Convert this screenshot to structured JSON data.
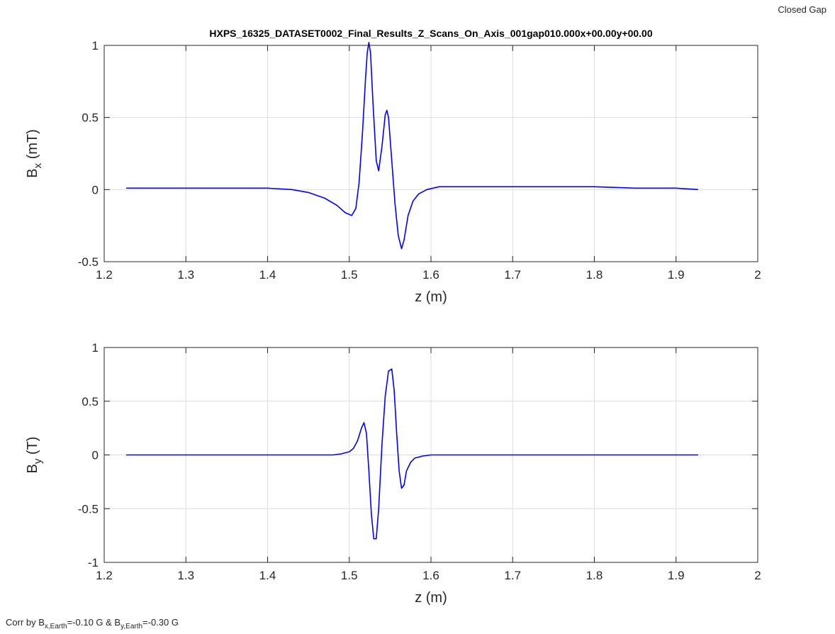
{
  "corner_label": "Closed Gap",
  "footnote": {
    "prefix": "Corr by B",
    "sub1": "x,Earth",
    "mid": "=-0.10 G & B",
    "sub2": "y,Earth",
    "suffix": "=-0.30 G"
  },
  "colors": {
    "line": "#0000ff",
    "grid": "#dedede",
    "axis": "#262626"
  },
  "chart_data": [
    {
      "type": "line",
      "title": "HXPS_16325_DATASET0002_Final_Results_Z_Scans_On_Axis_001gap010.000x+00.00y+00.00",
      "xlabel": "z (m)",
      "ylabel_main": "B",
      "ylabel_sub": "x",
      "ylabel_unit": " (mT)",
      "xlim": [
        1.2,
        2.0
      ],
      "ylim": [
        -0.5,
        1.0
      ],
      "xticks": [
        1.2,
        1.3,
        1.4,
        1.5,
        1.6,
        1.7,
        1.8,
        1.9,
        2.0
      ],
      "xtick_labels": [
        "1.2",
        "1.3",
        "1.4",
        "1.5",
        "1.6",
        "1.7",
        "1.8",
        "1.9",
        "2"
      ],
      "yticks": [
        -0.5,
        0,
        0.5,
        1.0
      ],
      "ytick_labels": [
        "-0.5",
        "0",
        "0.5",
        "1"
      ],
      "grid": true,
      "series": [
        {
          "x": [
            1.227,
            1.25,
            1.3,
            1.35,
            1.4,
            1.43,
            1.45,
            1.47,
            1.485,
            1.495,
            1.503,
            1.508,
            1.512,
            1.516,
            1.52,
            1.522,
            1.524,
            1.526,
            1.529,
            1.533,
            1.536,
            1.54,
            1.544,
            1.546,
            1.548,
            1.552,
            1.556,
            1.56,
            1.564,
            1.567,
            1.572,
            1.578,
            1.585,
            1.595,
            1.61,
            1.65,
            1.7,
            1.75,
            1.8,
            1.85,
            1.9,
            1.927
          ],
          "y": [
            0.01,
            0.01,
            0.01,
            0.01,
            0.01,
            0.0,
            -0.02,
            -0.06,
            -0.11,
            -0.16,
            -0.18,
            -0.13,
            0.05,
            0.38,
            0.78,
            0.95,
            1.02,
            0.95,
            0.6,
            0.2,
            0.13,
            0.3,
            0.52,
            0.55,
            0.5,
            0.2,
            -0.1,
            -0.32,
            -0.41,
            -0.35,
            -0.18,
            -0.08,
            -0.03,
            0.0,
            0.02,
            0.02,
            0.02,
            0.02,
            0.02,
            0.01,
            0.01,
            0.0
          ]
        }
      ]
    },
    {
      "type": "line",
      "title": "",
      "xlabel": "z (m)",
      "ylabel_main": "B",
      "ylabel_sub": "y",
      "ylabel_unit": " (T)",
      "xlim": [
        1.2,
        2.0
      ],
      "ylim": [
        -1.0,
        1.0
      ],
      "xticks": [
        1.2,
        1.3,
        1.4,
        1.5,
        1.6,
        1.7,
        1.8,
        1.9,
        2.0
      ],
      "xtick_labels": [
        "1.2",
        "1.3",
        "1.4",
        "1.5",
        "1.6",
        "1.7",
        "1.8",
        "1.9",
        "2"
      ],
      "yticks": [
        -1.0,
        -0.5,
        0,
        0.5,
        1.0
      ],
      "ytick_labels": [
        "-1",
        "-0.5",
        "0",
        "0.5",
        "1"
      ],
      "grid": true,
      "series": [
        {
          "x": [
            1.227,
            1.3,
            1.4,
            1.48,
            1.49,
            1.5,
            1.505,
            1.51,
            1.515,
            1.518,
            1.521,
            1.524,
            1.527,
            1.53,
            1.533,
            1.536,
            1.54,
            1.544,
            1.548,
            1.552,
            1.555,
            1.558,
            1.561,
            1.564,
            1.567,
            1.57,
            1.575,
            1.58,
            1.59,
            1.6,
            1.7,
            1.8,
            1.927
          ],
          "y": [
            0.0,
            0.0,
            0.0,
            0.0,
            0.01,
            0.03,
            0.06,
            0.13,
            0.25,
            0.3,
            0.2,
            -0.15,
            -0.55,
            -0.78,
            -0.78,
            -0.5,
            0.1,
            0.55,
            0.78,
            0.8,
            0.6,
            0.2,
            -0.15,
            -0.31,
            -0.28,
            -0.15,
            -0.07,
            -0.03,
            -0.01,
            0.0,
            0.0,
            0.0,
            0.0
          ]
        }
      ]
    }
  ]
}
